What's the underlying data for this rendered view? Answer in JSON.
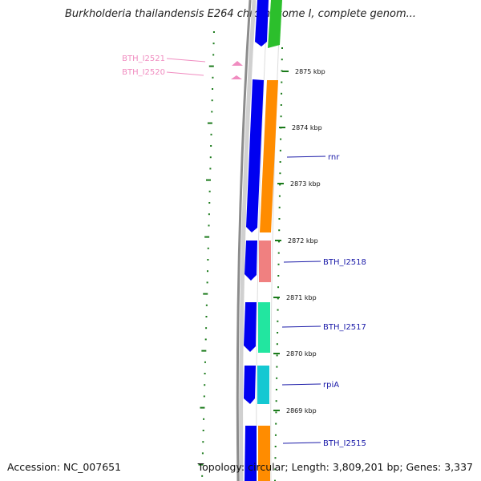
{
  "title": "Burkholderia thailandensis E264 chromosome I, complete genom...",
  "footer": {
    "accession": "Accession: NC_007651",
    "topology": "Topology: circular; Length: 3,809,201 bp; Genes: 3,337"
  },
  "ticks": [
    "2875 kbp",
    "2874 kbp",
    "2873 kbp",
    "2872 kbp",
    "2871 kbp",
    "2870 kbp",
    "2869 kbp"
  ],
  "gene_labels": [
    "rnr",
    "BTH_I2518",
    "BTH_I2517",
    "rpiA",
    "BTH_I2515"
  ],
  "pink_labels": [
    "BTH_I2521",
    "BTH_I2520"
  ],
  "colors": {
    "backbone": "#8c8c8c",
    "blue": "#0000f0",
    "green": "#2cbf2c",
    "orange": "#ff8c00",
    "salmon": "#f08080",
    "mint": "#22e6a0",
    "cyan": "#14c8d2",
    "tick": "#1a7a1a",
    "label_line": "#1a1aa8",
    "pink": "#f08cc0"
  }
}
